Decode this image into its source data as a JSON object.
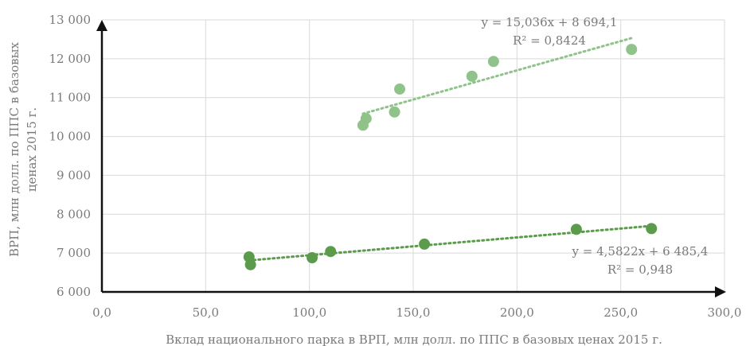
{
  "chart_data": {
    "type": "scatter",
    "title": "",
    "xlabel": "Вклад национального  парка в ВРП, млн долл. по ППС в базовых ценах 2015 г.",
    "ylabel_lines": [
      "ВРП, млн долл. по ППС в базовых",
      "ценах 2015 г."
    ],
    "xlim": [
      0,
      300
    ],
    "ylim": [
      6000,
      13000
    ],
    "x_ticks": [
      {
        "value": 0,
        "label": "0,0"
      },
      {
        "value": 50,
        "label": "50,0"
      },
      {
        "value": 100,
        "label": "100,0"
      },
      {
        "value": 150,
        "label": "150,0"
      },
      {
        "value": 200,
        "label": "200,0"
      },
      {
        "value": 250,
        "label": "250,0"
      },
      {
        "value": 300,
        "label": "300,0"
      }
    ],
    "y_ticks": [
      {
        "value": 6000,
        "label": "6 000"
      },
      {
        "value": 7000,
        "label": "7 000"
      },
      {
        "value": 8000,
        "label": "8 000"
      },
      {
        "value": 9000,
        "label": "9 000"
      },
      {
        "value": 10000,
        "label": "10 000"
      },
      {
        "value": 11000,
        "label": "11 000"
      },
      {
        "value": 12000,
        "label": "12 000"
      },
      {
        "value": 13000,
        "label": "13 000"
      }
    ],
    "grid": true,
    "series": [
      {
        "color": "#8fc38a",
        "points": [
          {
            "x": 125.8,
            "y": 10290
          },
          {
            "x": 127.3,
            "y": 10460
          },
          {
            "x": 141.0,
            "y": 10630
          },
          {
            "x": 143.5,
            "y": 11220
          },
          {
            "x": 178.3,
            "y": 11550
          },
          {
            "x": 188.7,
            "y": 11930
          },
          {
            "x": 255.2,
            "y": 12240
          }
        ],
        "trendline": {
          "slope": 15.036,
          "intercept": 8694.1,
          "x_from": 125.8,
          "x_to": 255.2,
          "equation": "y = 15,036x + 8 694,1",
          "r2": "R² = 0,8424"
        }
      },
      {
        "color": "#5b9b4b",
        "points": [
          {
            "x": 70.9,
            "y": 6900
          },
          {
            "x": 71.6,
            "y": 6700
          },
          {
            "x": 101.3,
            "y": 6880
          },
          {
            "x": 110.2,
            "y": 7040
          },
          {
            "x": 155.4,
            "y": 7230
          },
          {
            "x": 228.6,
            "y": 7610
          },
          {
            "x": 264.8,
            "y": 7630
          }
        ],
        "trendline": {
          "slope": 4.5822,
          "intercept": 6485.4,
          "x_from": 70.9,
          "x_to": 264.8,
          "equation": "y = 4,5822x + 6 485,4",
          "r2": "R² = 0,948"
        }
      }
    ]
  }
}
